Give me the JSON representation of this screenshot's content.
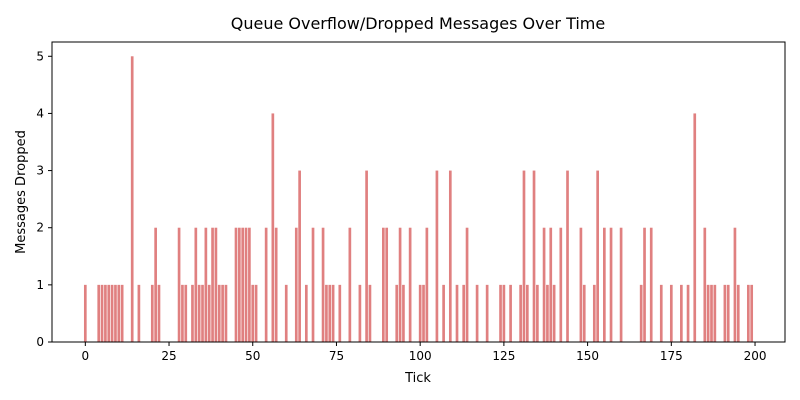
{
  "chart_data": {
    "type": "bar",
    "title": "Queue Overflow/Dropped Messages Over Time",
    "xlabel": "Tick",
    "ylabel": "Messages Dropped",
    "xlim": [
      -9.95,
      208.95
    ],
    "ylim": [
      0,
      5.25
    ],
    "xticks": [
      0,
      25,
      50,
      75,
      100,
      125,
      150,
      175,
      200
    ],
    "yticks": [
      0,
      1,
      2,
      3,
      4,
      5
    ],
    "grid": false,
    "bar_color": "#e08080",
    "x": [
      0,
      4,
      5,
      6,
      7,
      8,
      9,
      10,
      11,
      14,
      16,
      20,
      21,
      22,
      28,
      29,
      30,
      32,
      33,
      34,
      35,
      36,
      37,
      38,
      39,
      40,
      41,
      42,
      45,
      46,
      47,
      48,
      49,
      50,
      51,
      54,
      56,
      57,
      60,
      63,
      64,
      66,
      68,
      71,
      72,
      73,
      74,
      76,
      79,
      82,
      84,
      85,
      89,
      90,
      93,
      94,
      95,
      97,
      100,
      101,
      102,
      105,
      107,
      109,
      111,
      113,
      114,
      117,
      120,
      124,
      125,
      127,
      130,
      131,
      132,
      134,
      135,
      137,
      138,
      139,
      140,
      142,
      144,
      148,
      149,
      152,
      153,
      155,
      157,
      160,
      166,
      167,
      169,
      172,
      175,
      178,
      180,
      182,
      185,
      186,
      187,
      188,
      191,
      192,
      194,
      195,
      198,
      199
    ],
    "values": [
      1,
      1,
      1,
      1,
      1,
      1,
      1,
      1,
      1,
      5,
      1,
      1,
      2,
      1,
      2,
      1,
      1,
      1,
      2,
      1,
      1,
      2,
      1,
      2,
      2,
      1,
      1,
      1,
      2,
      2,
      2,
      2,
      2,
      1,
      1,
      2,
      4,
      2,
      1,
      2,
      3,
      1,
      2,
      2,
      1,
      1,
      1,
      1,
      2,
      1,
      3,
      1,
      2,
      2,
      1,
      2,
      1,
      2,
      1,
      1,
      2,
      3,
      1,
      3,
      1,
      1,
      2,
      1,
      1,
      1,
      1,
      1,
      1,
      3,
      1,
      3,
      1,
      2,
      1,
      2,
      1,
      2,
      3,
      2,
      1,
      1,
      3,
      2,
      2,
      2,
      1,
      2,
      2,
      1,
      1,
      1,
      1,
      4,
      2,
      1,
      1,
      1,
      1,
      1,
      2,
      1,
      1,
      1
    ]
  }
}
